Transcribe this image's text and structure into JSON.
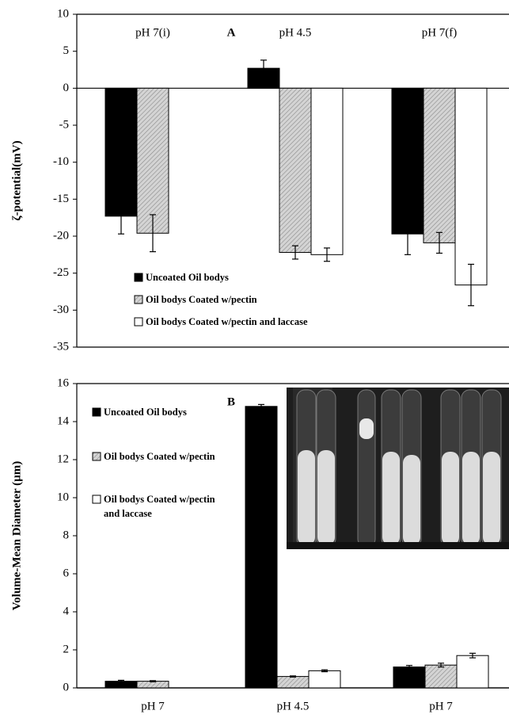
{
  "chart_data": [
    {
      "type": "bar",
      "title": "A",
      "ylabel": "ζ-potential(mV)",
      "categories": [
        "pH 7(i)",
        "pH 4.5",
        "pH 7(f)"
      ],
      "series": [
        {
          "name": "Uncoated Oil bodys",
          "color": "#000000",
          "values": [
            -17.3,
            2.7,
            -19.7
          ],
          "errors": [
            2.4,
            1.1,
            2.8
          ]
        },
        {
          "name": "Oil bodys Coated w/pectin",
          "color": "#c8c8c8",
          "hatch": true,
          "values": [
            -19.6,
            -22.2,
            -20.9
          ],
          "errors": [
            2.5,
            0.9,
            1.4
          ]
        },
        {
          "name": "Oil bodys Coated w/pectin and laccase",
          "color": "#ffffff",
          "values": [
            null,
            -22.5,
            -26.6
          ],
          "errors": [
            null,
            0.9,
            2.8
          ]
        }
      ],
      "ylim": [
        -35,
        10
      ],
      "yticks": [
        10,
        5,
        0,
        -5,
        -10,
        -15,
        -20,
        -25,
        -30,
        -35
      ]
    },
    {
      "type": "bar",
      "title": "B",
      "ylabel": "Volume-Mean Diameter (µm)",
      "categories": [
        "pH 7",
        "pH 4.5",
        "pH 7"
      ],
      "series": [
        {
          "name": "Uncoated Oil bodys",
          "color": "#000000",
          "values": [
            0.35,
            14.8,
            1.1
          ],
          "errors": [
            0.05,
            0.1,
            0.08
          ]
        },
        {
          "name": "Oil bodys Coated w/pectin",
          "color": "#c8c8c8",
          "hatch": true,
          "values": [
            0.35,
            0.6,
            1.2
          ],
          "errors": [
            0.03,
            0.03,
            0.1
          ]
        },
        {
          "name": "Oil bodys Coated w/pectin and laccase",
          "color": "#ffffff",
          "values": [
            null,
            0.9,
            1.7
          ],
          "errors": [
            null,
            0.05,
            0.12
          ]
        }
      ],
      "ylim": [
        0,
        16
      ],
      "yticks": [
        0,
        2,
        4,
        6,
        8,
        10,
        12,
        14,
        16
      ]
    }
  ]
}
